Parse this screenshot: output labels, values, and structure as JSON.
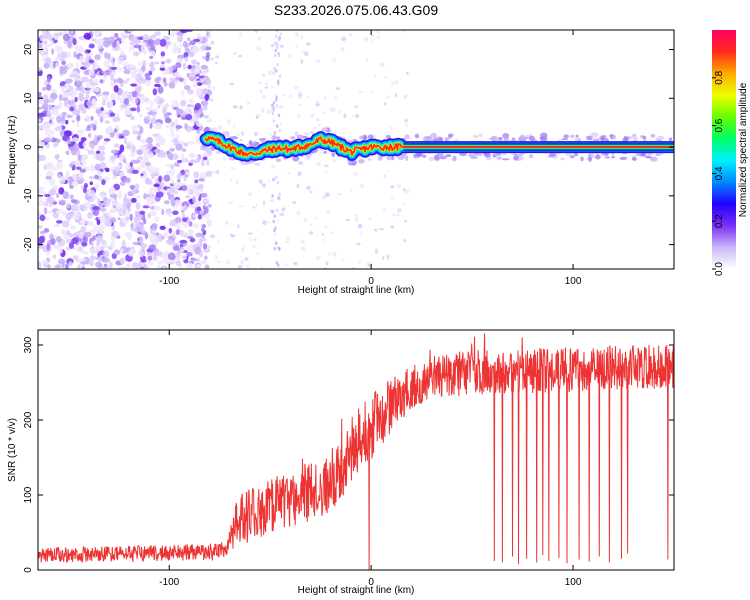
{
  "title": "S233.2026.075.06.43.G09",
  "chart_data": [
    {
      "type": "heatmap",
      "xlabel": "Height of straight line (km)",
      "ylabel": "Frequency (Hz)",
      "xlim": [
        -165,
        150
      ],
      "ylim": [
        -25,
        24
      ],
      "xticks": [
        -100,
        0,
        100
      ],
      "yticks": [
        -20,
        -10,
        0,
        10,
        20
      ],
      "noise_region_x": [
        -165,
        -82
      ],
      "ridge": [
        [
          -82,
          2
        ],
        [
          -75,
          1
        ],
        [
          -70,
          0
        ],
        [
          -65,
          -1
        ],
        [
          -60,
          -1.5
        ],
        [
          -55,
          -1
        ],
        [
          -50,
          -0.5
        ],
        [
          -45,
          -0.2
        ],
        [
          -40,
          -0.5
        ],
        [
          -35,
          0
        ],
        [
          -30,
          0.5
        ],
        [
          -25,
          1.5
        ],
        [
          -20,
          1
        ],
        [
          -15,
          0
        ],
        [
          -10,
          -1
        ],
        [
          -5,
          -0.5
        ],
        [
          0,
          0
        ],
        [
          10,
          0
        ],
        [
          20,
          0
        ],
        [
          50,
          0
        ],
        [
          100,
          0
        ],
        [
          150,
          0
        ]
      ],
      "colorbar": {
        "label": "Normalized spectral amplitude",
        "range": [
          0,
          1
        ],
        "ticks": [
          "0.0",
          "0.2",
          "0.4",
          "0.6",
          "0.8"
        ],
        "tick_values": [
          0,
          0.2,
          0.4,
          0.6,
          0.8
        ],
        "colors": [
          "#ffffff",
          "#c9b8f8",
          "#7a2ff7",
          "#2200ff",
          "#0088ff",
          "#00f0ff",
          "#00ff66",
          "#66ff00",
          "#eeff00",
          "#ffaa00",
          "#ff2a1a",
          "#ff0066"
        ]
      }
    },
    {
      "type": "line",
      "xlabel": "Height of straight line (km)",
      "ylabel": "SNR (10 * v/v)",
      "xlim": [
        -165,
        150
      ],
      "ylim": [
        0,
        320
      ],
      "xticks": [
        -100,
        0,
        100
      ],
      "yticks": [
        0,
        100,
        200,
        300
      ],
      "color": "#ee3333",
      "trend": [
        [
          -165,
          20
        ],
        [
          -120,
          22
        ],
        [
          -80,
          24
        ],
        [
          -72,
          28
        ],
        [
          -66,
          65
        ],
        [
          -55,
          80
        ],
        [
          -45,
          92
        ],
        [
          -35,
          100
        ],
        [
          -25,
          110
        ],
        [
          -15,
          130
        ],
        [
          -8,
          170
        ],
        [
          0,
          190
        ],
        [
          10,
          220
        ],
        [
          20,
          245
        ],
        [
          30,
          258
        ],
        [
          50,
          263
        ],
        [
          80,
          265
        ],
        [
          100,
          268
        ],
        [
          120,
          270
        ],
        [
          150,
          272
        ]
      ],
      "noise_amplitude": [
        [
          -165,
          10
        ],
        [
          -72,
          11
        ],
        [
          -66,
          35
        ],
        [
          -30,
          40
        ],
        [
          0,
          45
        ],
        [
          20,
          30
        ],
        [
          150,
          30
        ]
      ],
      "dropouts": [
        [
          -1,
          0
        ],
        [
          61,
          12
        ],
        [
          65,
          10
        ],
        [
          70,
          18
        ],
        [
          73,
          8
        ],
        [
          77,
          15
        ],
        [
          82,
          10
        ],
        [
          85,
          20
        ],
        [
          88,
          12
        ],
        [
          93,
          16
        ],
        [
          97,
          9
        ],
        [
          103,
          14
        ],
        [
          108,
          11
        ],
        [
          113,
          18
        ],
        [
          118,
          10
        ],
        [
          124,
          15
        ],
        [
          127,
          22
        ],
        [
          147,
          14
        ]
      ]
    }
  ]
}
